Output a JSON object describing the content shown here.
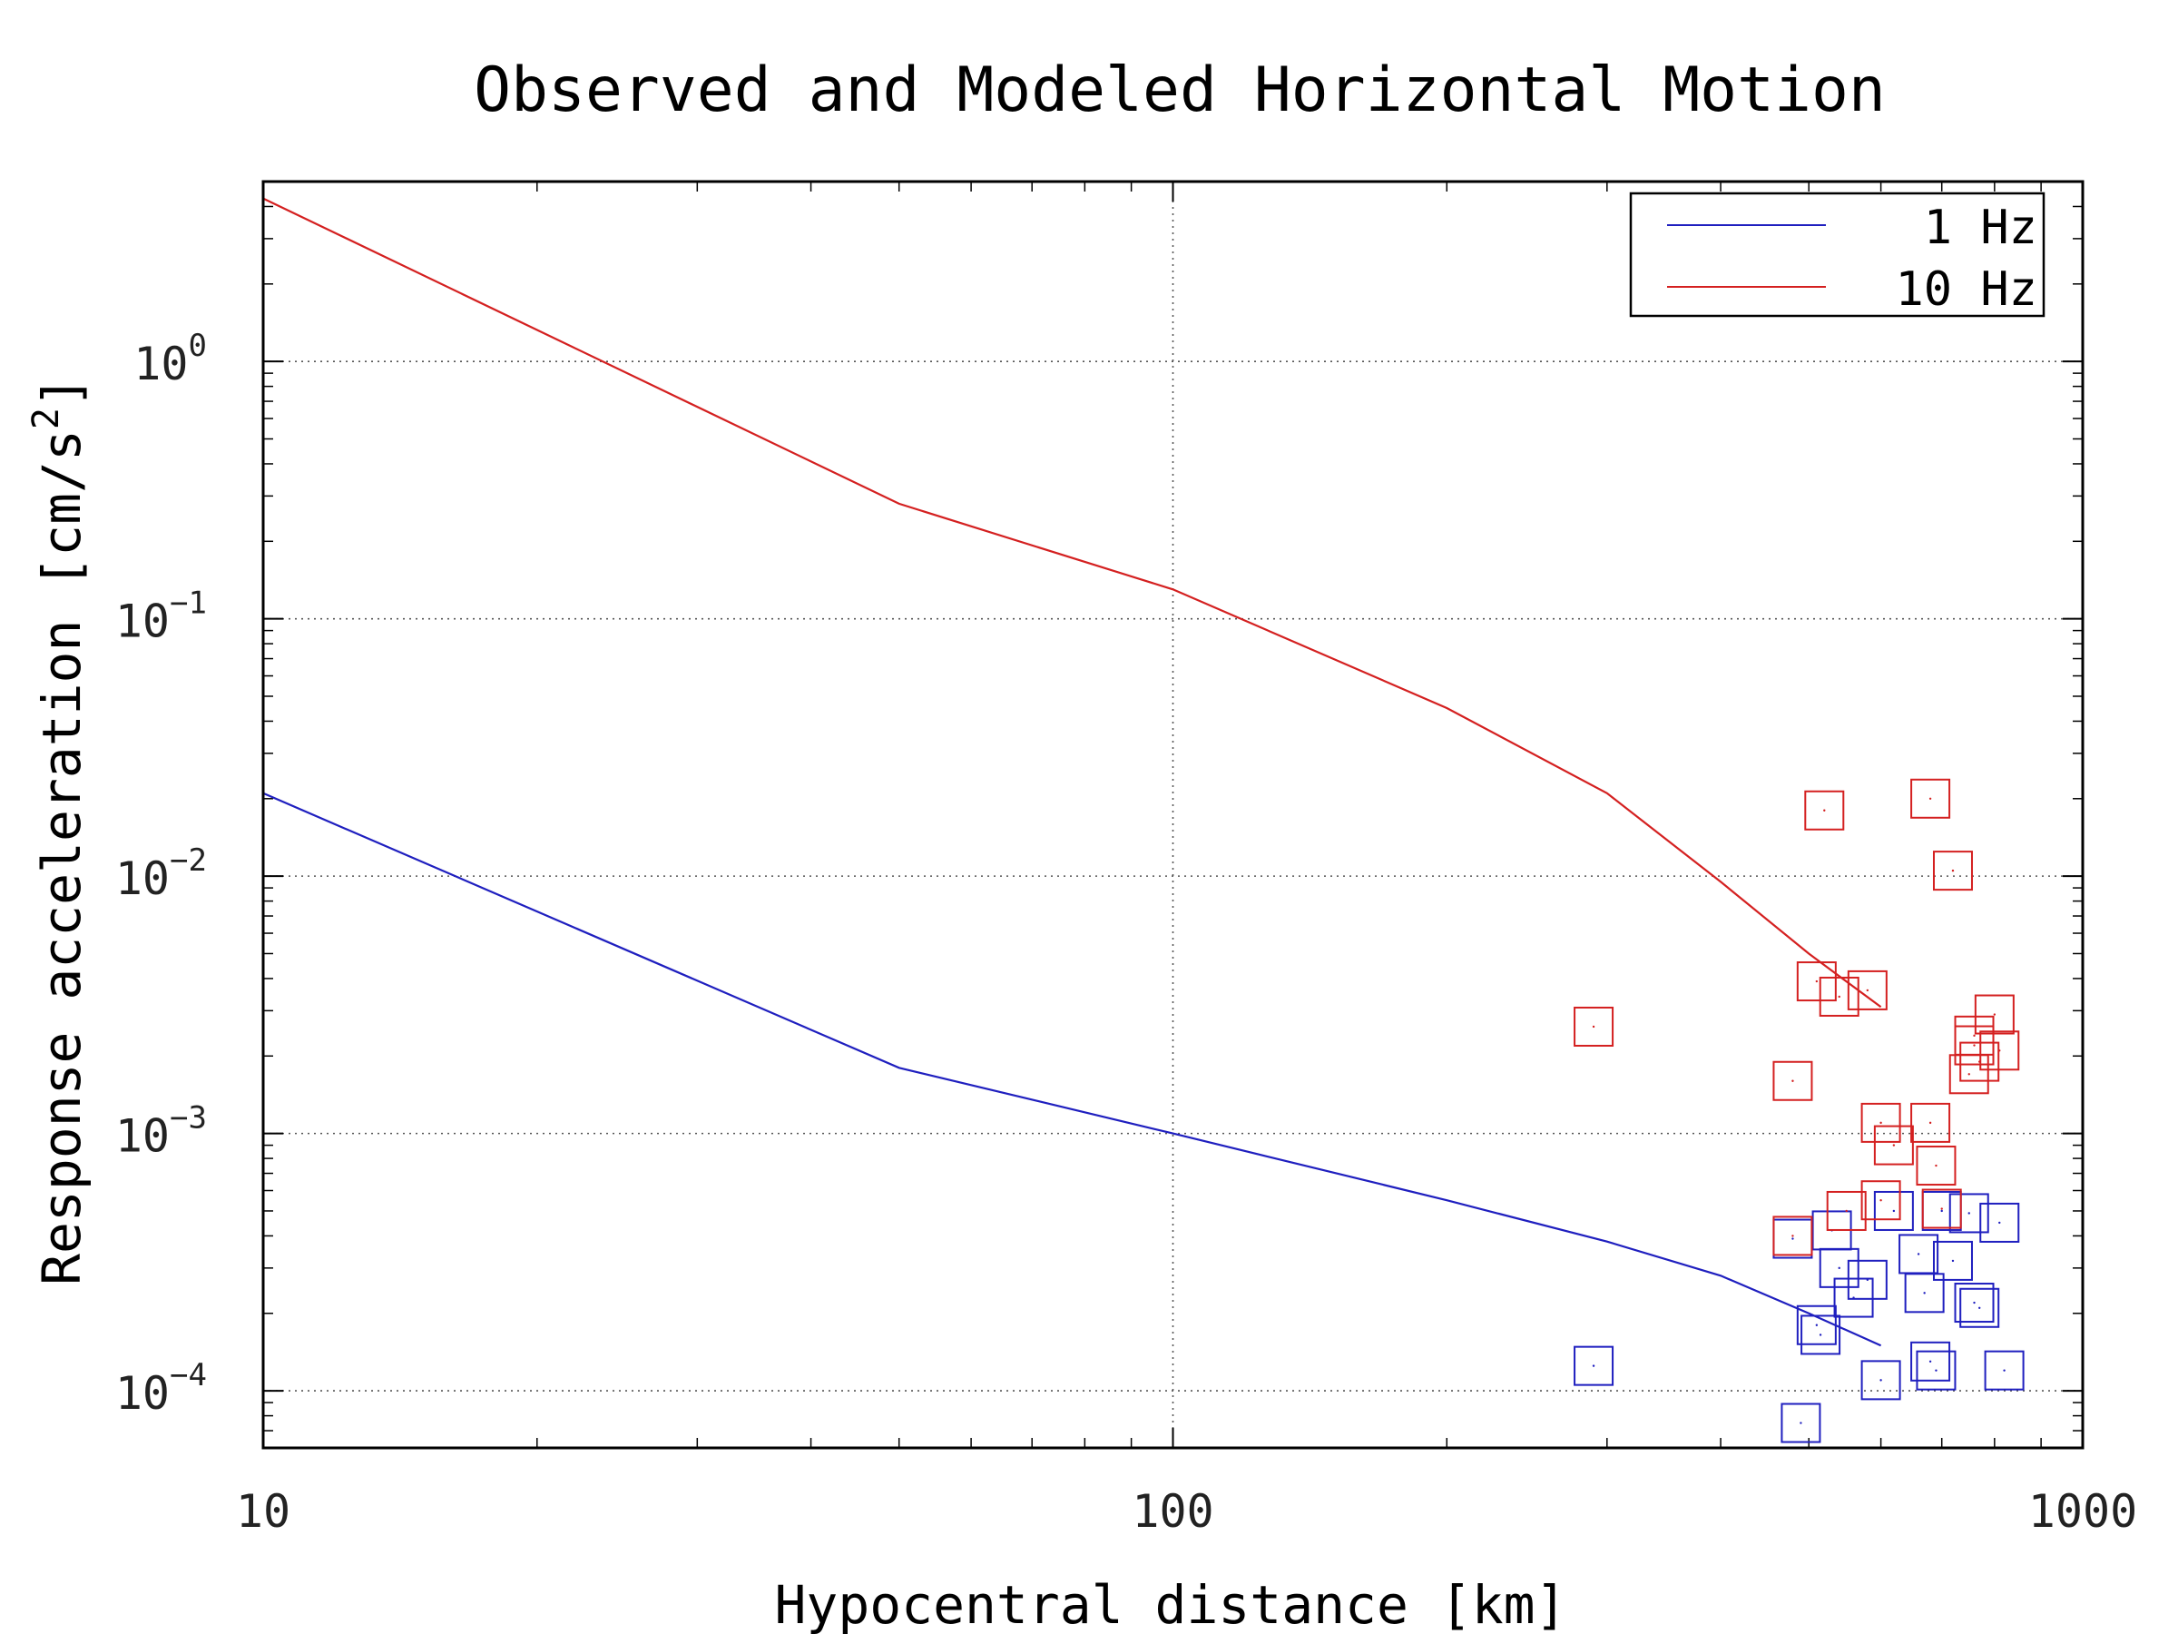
{
  "chart_data": {
    "type": "scatter",
    "title": "Observed and Modeled Horizontal Motion",
    "xlabel": "Hypocentral distance [km]",
    "ylabel": "Response acceleration [cm/s",
    "ylabel_superscript": "2",
    "ylabel_suffix": "]",
    "xscale": "log",
    "yscale": "log",
    "xlim": [
      10,
      1000
    ],
    "ylim": [
      6e-05,
      5
    ],
    "grid": true,
    "legend_position": "top-right",
    "x_ticks": [
      {
        "value": 10,
        "label": "10"
      },
      {
        "value": 100,
        "label": "100"
      },
      {
        "value": 1000,
        "label": "1000"
      }
    ],
    "y_ticks": [
      {
        "value": 1,
        "base": "10",
        "exp": "0"
      },
      {
        "value": 0.1,
        "base": "10",
        "exp": "−1"
      },
      {
        "value": 0.01,
        "base": "10",
        "exp": "−2"
      },
      {
        "value": 0.001,
        "base": "10",
        "exp": "−3"
      },
      {
        "value": 0.0001,
        "base": "10",
        "exp": "−4"
      }
    ],
    "series": [
      {
        "name": "1 Hz",
        "color": "#1f1fbf",
        "line": [
          [
            10,
            0.021
          ],
          [
            50,
            0.0018
          ],
          [
            100,
            0.001
          ],
          [
            200,
            0.00055
          ],
          [
            300,
            0.00038
          ],
          [
            400,
            0.00028
          ],
          [
            500,
            0.0002
          ],
          [
            600,
            0.00015
          ]
        ],
        "observed": [
          [
            290,
            0.000125
          ],
          [
            480,
            0.00039
          ],
          [
            490,
            7.5e-05
          ],
          [
            510,
            0.00018
          ],
          [
            515,
            0.000165
          ],
          [
            530,
            0.00042
          ],
          [
            540,
            0.0003
          ],
          [
            560,
            0.00023
          ],
          [
            580,
            0.00027
          ],
          [
            600,
            0.00011
          ],
          [
            620,
            0.0005
          ],
          [
            660,
            0.00034
          ],
          [
            670,
            0.00024
          ],
          [
            680,
            0.00013
          ],
          [
            690,
            0.00012
          ],
          [
            700,
            0.0005
          ],
          [
            720,
            0.00032
          ],
          [
            750,
            0.00049
          ],
          [
            760,
            0.00022
          ],
          [
            770,
            0.00021
          ],
          [
            810,
            0.00045
          ],
          [
            820,
            0.00012
          ]
        ]
      },
      {
        "name": "10 Hz",
        "color": "#d42020",
        "line": [
          [
            10,
            4.3
          ],
          [
            50,
            0.28
          ],
          [
            100,
            0.13
          ],
          [
            200,
            0.045
          ],
          [
            300,
            0.021
          ],
          [
            400,
            0.0095
          ],
          [
            500,
            0.005
          ],
          [
            600,
            0.0031
          ]
        ],
        "observed": [
          [
            290,
            0.0026
          ],
          [
            480,
            0.0016
          ],
          [
            480,
            0.0004
          ],
          [
            510,
            0.0039
          ],
          [
            520,
            0.018
          ],
          [
            540,
            0.0034
          ],
          [
            550,
            0.0005
          ],
          [
            580,
            0.0036
          ],
          [
            600,
            0.0011
          ],
          [
            600,
            0.00055
          ],
          [
            620,
            0.0009
          ],
          [
            680,
            0.02
          ],
          [
            680,
            0.0011
          ],
          [
            690,
            0.00075
          ],
          [
            700,
            0.00051
          ],
          [
            720,
            0.0105
          ],
          [
            750,
            0.0017
          ],
          [
            760,
            0.0022
          ],
          [
            760,
            0.0024
          ],
          [
            770,
            0.0019
          ],
          [
            800,
            0.0029
          ],
          [
            810,
            0.0021
          ]
        ]
      }
    ]
  }
}
